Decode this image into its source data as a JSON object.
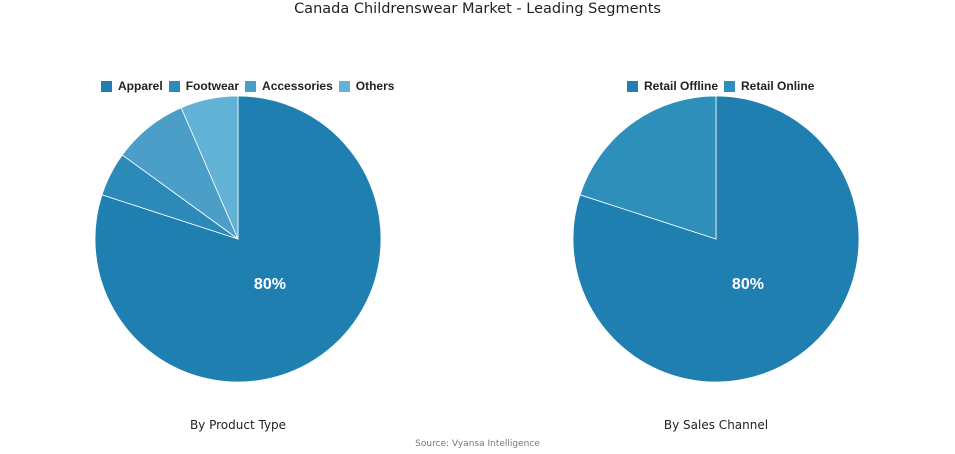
{
  "title": "Canada Childrenswear Market - Leading Segments",
  "source": "Source: Vyansa Intelligence",
  "chart_data": [
    {
      "type": "pie",
      "title": "By Product Type",
      "categories": [
        "Apparel",
        "Footwear",
        "Accessories",
        "Others"
      ],
      "values": [
        80,
        5,
        8.5,
        6.5
      ],
      "colors": [
        "#1f7fb0",
        "#2b8ab8",
        "#4a9ec8",
        "#62b2d6"
      ],
      "data_labels": [
        "80%",
        "",
        "",
        ""
      ],
      "legend_position": "top"
    },
    {
      "type": "pie",
      "title": "By Sales Channel",
      "categories": [
        "Retail Offline",
        "Retail Online"
      ],
      "values": [
        80,
        20
      ],
      "colors": [
        "#1f7fb0",
        "#2e8fbb"
      ],
      "data_labels": [
        "80%",
        ""
      ],
      "legend_position": "top"
    }
  ],
  "charts": {
    "left": {
      "caption": "By Product Type",
      "label": "80%",
      "legend": [
        "Apparel",
        "Footwear",
        "Accessories",
        "Others"
      ]
    },
    "right": {
      "caption": "By Sales Channel",
      "label": "80%",
      "legend": [
        "Retail Offline",
        "Retail Online"
      ]
    }
  }
}
